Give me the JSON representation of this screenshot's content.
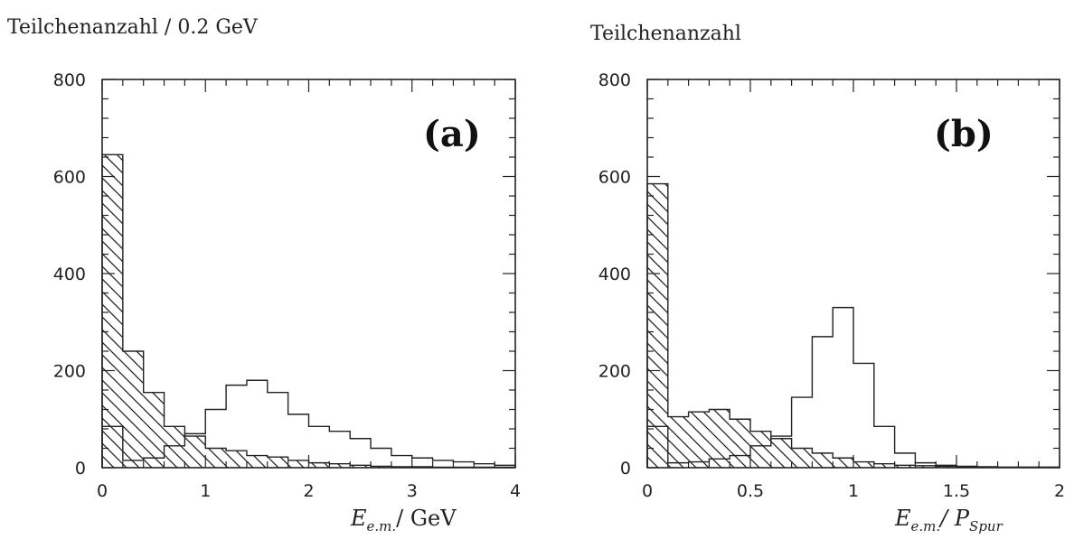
{
  "chart_data": [
    {
      "type": "bar",
      "panel_label": "(a)",
      "ylabel": "Teilchenanzahl / 0.2  GeV",
      "xlabel": {
        "main": "E",
        "sub": "e.m.",
        "rest": "/ GeV"
      },
      "xlim": [
        0,
        4
      ],
      "ylim": [
        0,
        800
      ],
      "xticks": [
        0,
        1,
        2,
        3,
        4
      ],
      "xtick_labels": [
        "0",
        "1",
        "2",
        "3",
        "4"
      ],
      "yticks": [
        0,
        200,
        400,
        600,
        800
      ],
      "ytick_labels": [
        "0",
        "200",
        "400",
        "600",
        "800"
      ],
      "bin_edges": [
        0,
        0.2,
        0.4,
        0.6,
        0.8,
        1.0,
        1.2,
        1.4,
        1.6,
        1.8,
        2.0,
        2.2,
        2.4,
        2.6,
        2.8,
        3.0,
        3.2,
        3.4,
        3.6,
        3.8,
        4.0
      ],
      "series": [
        {
          "style": "hatched",
          "values": [
            645,
            240,
            155,
            85,
            65,
            40,
            35,
            25,
            22,
            15,
            10,
            8,
            5,
            3,
            2,
            2,
            1,
            1,
            1,
            1
          ]
        },
        {
          "style": "open",
          "values": [
            85,
            15,
            20,
            45,
            70,
            120,
            170,
            180,
            155,
            110,
            85,
            75,
            60,
            40,
            25,
            20,
            15,
            12,
            8,
            5
          ]
        }
      ]
    },
    {
      "type": "bar",
      "panel_label": "(b)",
      "ylabel": "Teilchenanzahl",
      "xlabel": {
        "main": "E",
        "sub": "e.m.",
        "rest": "/ P",
        "sub2": "Spur"
      },
      "xlim": [
        0,
        2
      ],
      "ylim": [
        0,
        800
      ],
      "xticks": [
        0,
        0.5,
        1,
        1.5,
        2
      ],
      "xtick_labels": [
        "0",
        "0.5",
        "1",
        "1.5",
        "2"
      ],
      "yticks": [
        0,
        200,
        400,
        600,
        800
      ],
      "ytick_labels": [
        "0",
        "200",
        "400",
        "600",
        "800"
      ],
      "bin_edges": [
        0,
        0.1,
        0.2,
        0.3,
        0.4,
        0.5,
        0.6,
        0.7,
        0.8,
        0.9,
        1.0,
        1.1,
        1.2,
        1.3,
        1.4,
        1.5,
        1.6,
        1.7,
        1.8,
        1.9,
        2.0
      ],
      "series": [
        {
          "style": "hatched",
          "values": [
            585,
            105,
            115,
            120,
            100,
            75,
            60,
            40,
            30,
            20,
            12,
            8,
            5,
            4,
            3,
            2,
            1,
            1,
            1,
            1
          ]
        },
        {
          "style": "open",
          "values": [
            85,
            10,
            12,
            18,
            25,
            45,
            65,
            145,
            270,
            330,
            215,
            85,
            30,
            10,
            5,
            3,
            2,
            1,
            1,
            1
          ]
        }
      ]
    }
  ]
}
